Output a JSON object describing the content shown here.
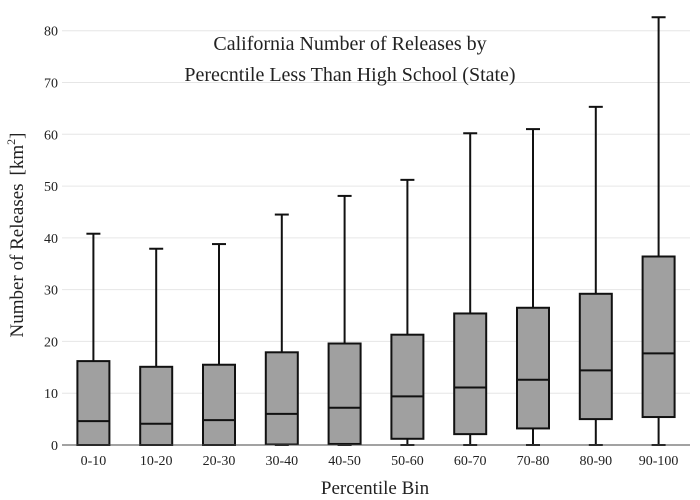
{
  "chart_data": {
    "type": "box",
    "title_lines": [
      "California Number of Releases by",
      "Perecntile Less Than High School (State)"
    ],
    "xlabel": "Percentile Bin",
    "ylabel": "Number of Releases",
    "ylabel_unit_base": "[km",
    "ylabel_unit_sup": "2",
    "ylabel_unit_close": "]",
    "ylim": [
      0,
      84
    ],
    "yticks": [
      0,
      10,
      20,
      30,
      40,
      50,
      60,
      70,
      80
    ],
    "grid": true,
    "box_color": "#a0a0a0",
    "categories": [
      "0-10",
      "10-20",
      "20-30",
      "30-40",
      "40-50",
      "50-60",
      "60-70",
      "70-80",
      "80-90",
      "90-100"
    ],
    "boxes": [
      {
        "category": "0-10",
        "min": 0,
        "q1": 0,
        "median": 4.6,
        "q3": 16.2,
        "max": 40.8
      },
      {
        "category": "10-20",
        "min": 0,
        "q1": 0,
        "median": 4.1,
        "q3": 15.1,
        "max": 37.9
      },
      {
        "category": "20-30",
        "min": 0,
        "q1": 0,
        "median": 4.8,
        "q3": 15.5,
        "max": 38.8
      },
      {
        "category": "30-40",
        "min": 0,
        "q1": 0.1,
        "median": 6.0,
        "q3": 17.9,
        "max": 44.5
      },
      {
        "category": "40-50",
        "min": 0,
        "q1": 0.2,
        "median": 7.2,
        "q3": 19.6,
        "max": 48.1
      },
      {
        "category": "50-60",
        "min": 0,
        "q1": 1.2,
        "median": 9.4,
        "q3": 21.3,
        "max": 51.2
      },
      {
        "category": "60-70",
        "min": 0,
        "q1": 2.1,
        "median": 11.1,
        "q3": 25.4,
        "max": 60.2
      },
      {
        "category": "70-80",
        "min": 0,
        "q1": 3.2,
        "median": 12.6,
        "q3": 26.5,
        "max": 61.0
      },
      {
        "category": "80-90",
        "min": 0,
        "q1": 5.0,
        "median": 14.4,
        "q3": 29.2,
        "max": 65.3
      },
      {
        "category": "90-100",
        "min": 0,
        "q1": 5.4,
        "median": 17.7,
        "q3": 36.4,
        "max": 82.6
      }
    ]
  }
}
